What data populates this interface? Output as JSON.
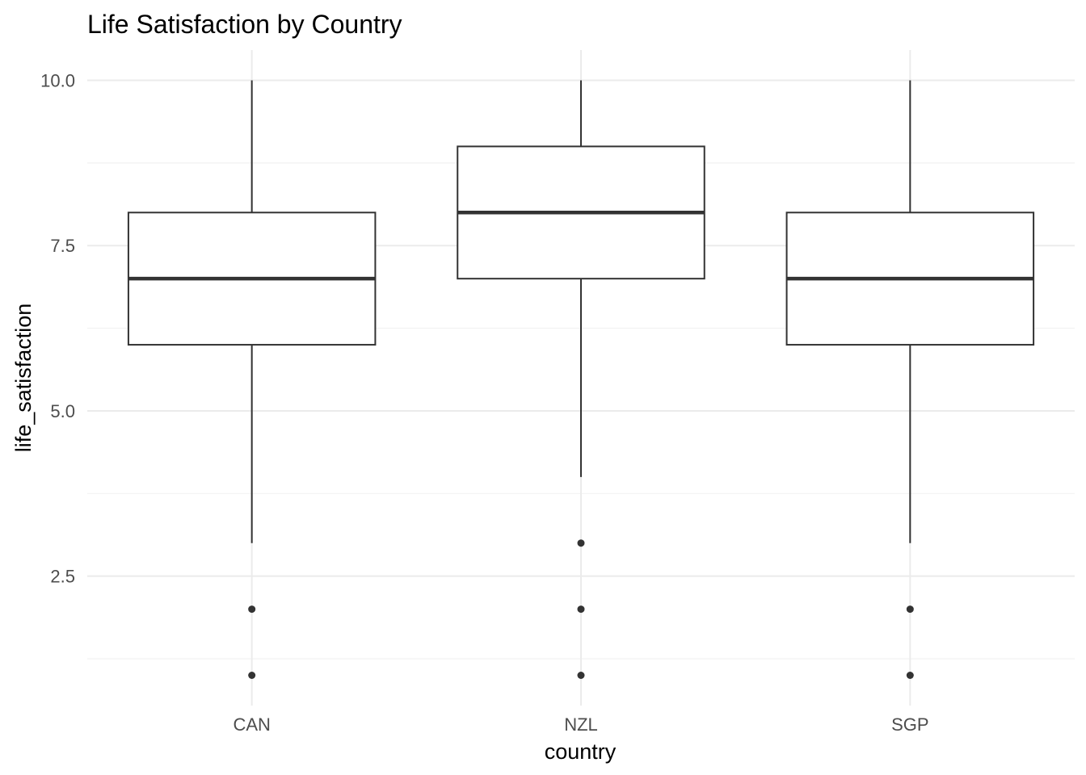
{
  "chart_data": {
    "type": "boxplot",
    "title": "Life Satisfaction by Country",
    "xlabel": "country",
    "ylabel": "life_satisfaction",
    "categories": [
      "CAN",
      "NZL",
      "SGP"
    ],
    "ylim": [
      0.9,
      10.45
    ],
    "yticks": [
      2.5,
      5.0,
      7.5,
      10.0
    ],
    "ytick_labels": [
      "2.5",
      "5.0",
      "7.5",
      "10.0"
    ],
    "yminor": [
      1.25,
      3.75,
      6.25,
      8.75
    ],
    "boxes": [
      {
        "category": "CAN",
        "whisker_low": 3,
        "q1": 6,
        "median": 7,
        "q3": 8,
        "whisker_high": 10,
        "outliers": [
          1,
          2
        ]
      },
      {
        "category": "NZL",
        "whisker_low": 4,
        "q1": 7,
        "median": 8,
        "q3": 9,
        "whisker_high": 10,
        "outliers": [
          1,
          2,
          3
        ]
      },
      {
        "category": "SGP",
        "whisker_low": 3,
        "q1": 6,
        "median": 7,
        "q3": 8,
        "whisker_high": 10,
        "outliers": [
          1,
          2
        ]
      }
    ],
    "grid": true,
    "legend": "none",
    "colors": {
      "box_line": "#333333",
      "box_fill": "#ffffff",
      "outlier": "#333333",
      "grid": "#ebebeb"
    }
  }
}
